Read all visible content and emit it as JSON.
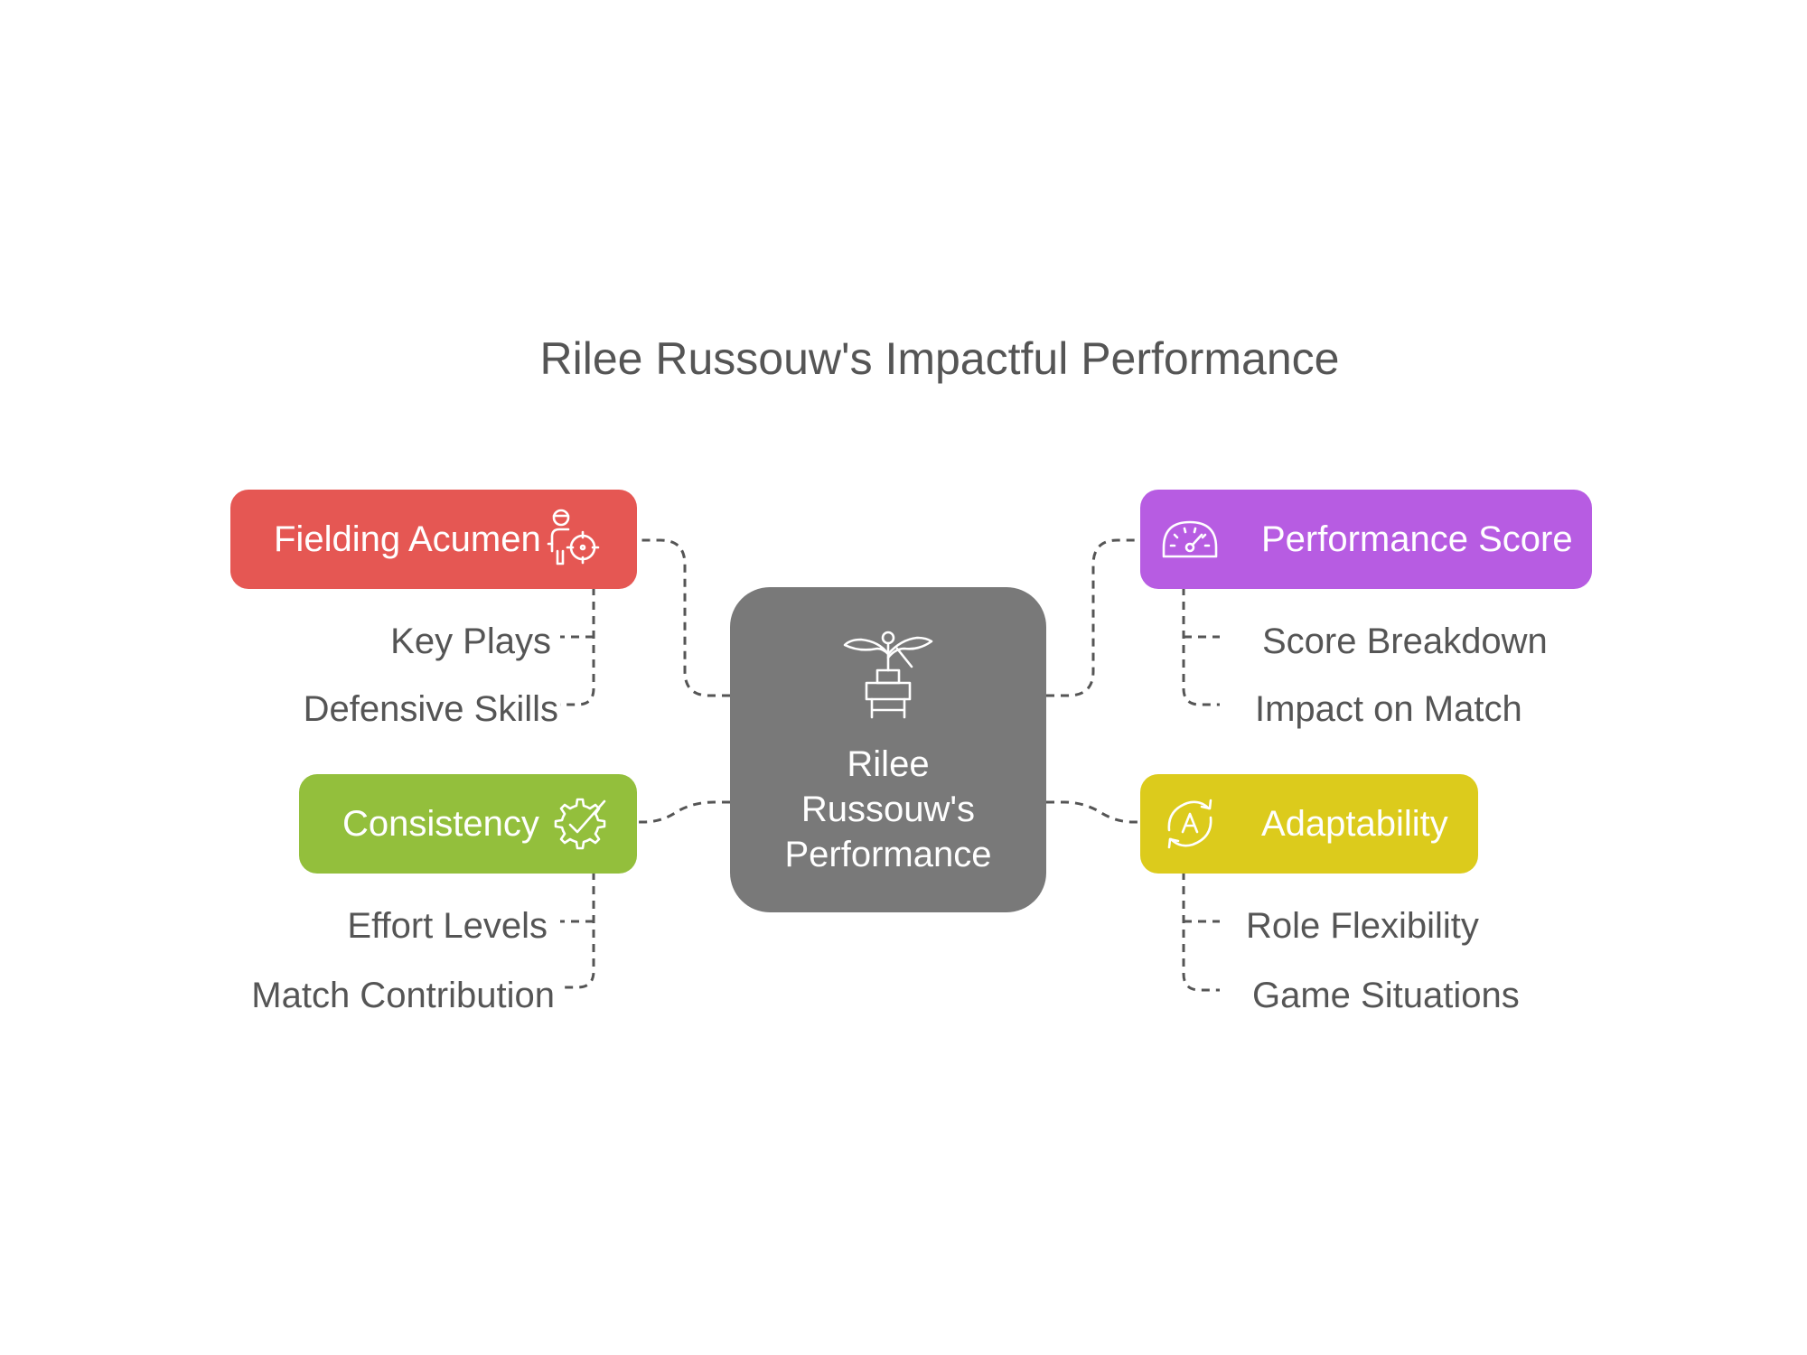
{
  "title": "Rilee Russouw's Impactful Performance",
  "center": {
    "line1": "Rilee",
    "line2": "Russouw's",
    "line3": "Performance",
    "icon": "plant-growth-icon",
    "color": "#797979"
  },
  "branches": {
    "fielding": {
      "label": "Fielding Acumen",
      "icon": "fielder-target-icon",
      "color": "#e55753",
      "children": [
        "Key Plays",
        "Defensive Skills"
      ]
    },
    "consistency": {
      "label": "Consistency",
      "icon": "gear-check-icon",
      "color": "#93bf3c",
      "children": [
        "Effort Levels",
        "Match Contribution"
      ]
    },
    "performance": {
      "label": "Performance Score",
      "icon": "speedometer-icon",
      "color": "#b75ce2",
      "children": [
        "Score Breakdown",
        "Impact on Match"
      ]
    },
    "adaptability": {
      "label": "Adaptability",
      "icon": "adapt-cycle-icon",
      "color": "#dccb1c",
      "children": [
        "Role Flexibility",
        "Game Situations"
      ]
    }
  },
  "colors": {
    "text": "#555555",
    "connector": "#555555"
  }
}
